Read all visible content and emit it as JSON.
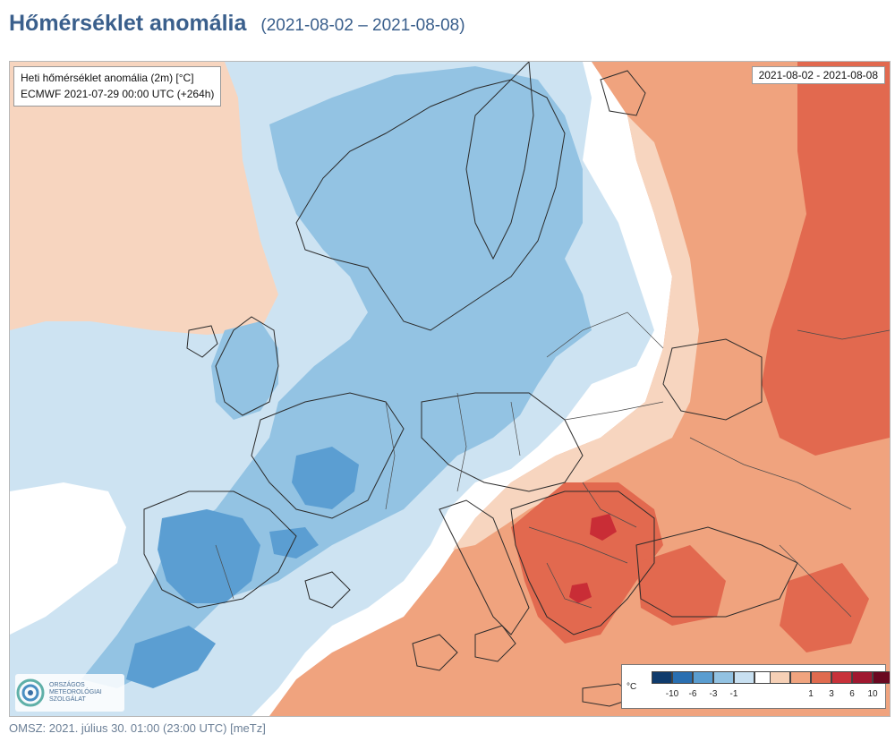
{
  "header": {
    "title": "Hőmérséklet anomália",
    "date_range": "(2021-08-02 – 2021-08-08)"
  },
  "map": {
    "info_line1": "Heti hőmérséklet anomália (2m) [°C]",
    "info_line2": "ECMWF 2021-07-29 00:00 UTC (+264h)",
    "date_label": "2021-08-02 - 2021-08-08"
  },
  "legend": {
    "unit": "°C",
    "swatches": [
      {
        "color": "#0f3b6c"
      },
      {
        "color": "#2a6fb1"
      },
      {
        "color": "#5a9dd0"
      },
      {
        "color": "#92c2e2"
      },
      {
        "color": "#c8e0f1"
      },
      {
        "color": "#ffffff"
      },
      {
        "color": "#f6d0b6"
      },
      {
        "color": "#f0a47f"
      },
      {
        "color": "#e06b4f"
      },
      {
        "color": "#c8323a"
      },
      {
        "color": "#a01830"
      },
      {
        "color": "#6a0820"
      }
    ],
    "ticks": [
      "-10",
      "-6",
      "-3",
      "-1",
      "1",
      "3",
      "6",
      "10"
    ]
  },
  "logo": {
    "text": "ORSZÁGOS\nMETEOROLÓGIAI\nSZOLGÁLAT"
  },
  "footer": {
    "note": "OMSZ: 2021. július 30. 01:00 (23:00  UTC)  [meTz]"
  },
  "colors": {
    "c_neg1": "#cde3f2",
    "c_neg3": "#93c3e3",
    "c_neg6": "#5b9ed2",
    "c_neg10": "#2a6fb1",
    "c_pos1": "#f7d5bf",
    "c_pos3": "#f0a37e",
    "c_pos6": "#e2694f",
    "c_pos10": "#c92d36",
    "c_pos_max": "#a01830"
  }
}
